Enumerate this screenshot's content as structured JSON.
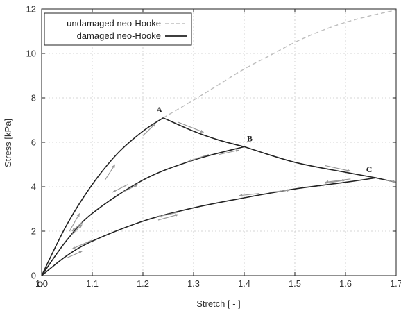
{
  "chart_data": {
    "type": "line",
    "xlabel": "Stretch [ - ]",
    "ylabel": "Stress [kPa]",
    "xlim": [
      1.0,
      1.7
    ],
    "ylim": [
      0,
      12
    ],
    "x_ticks": [
      "1.0",
      "1.1",
      "1.2",
      "1.3",
      "1.4",
      "1.5",
      "1.6",
      "1.7"
    ],
    "y_ticks": [
      "0",
      "2",
      "4",
      "6",
      "8",
      "10",
      "12"
    ],
    "grid": true,
    "legend_position": "top-left",
    "origin_label": "O",
    "series": [
      {
        "name": "undamaged neo-Hooke",
        "style": "dashed",
        "color": "#bdbdbd",
        "x": [
          1.24,
          1.3,
          1.35,
          1.4,
          1.45,
          1.5,
          1.55,
          1.6,
          1.65,
          1.7
        ],
        "y": [
          7.1,
          7.9,
          8.6,
          9.3,
          9.9,
          10.5,
          11.0,
          11.4,
          11.7,
          11.95
        ]
      },
      {
        "name": "damaged neo-Hooke",
        "style": "solid",
        "color": "#222222",
        "segments": [
          {
            "x": [
              1.0,
              1.05,
              1.1,
              1.15,
              1.2,
              1.24
            ],
            "y": [
              0,
              2.3,
              4.1,
              5.5,
              6.5,
              7.1
            ]
          },
          {
            "x": [
              1.24,
              1.3,
              1.35,
              1.4
            ],
            "y": [
              7.1,
              6.5,
              6.1,
              5.8
            ]
          },
          {
            "x": [
              1.0,
              1.05,
              1.1,
              1.2,
              1.3,
              1.4
            ],
            "y": [
              0,
              1.6,
              2.8,
              4.3,
              5.2,
              5.8
            ]
          },
          {
            "x": [
              1.4,
              1.5,
              1.6,
              1.66
            ],
            "y": [
              5.8,
              5.1,
              4.65,
              4.4
            ]
          },
          {
            "x": [
              1.0,
              1.05,
              1.1,
              1.2,
              1.3,
              1.4,
              1.5,
              1.6,
              1.66
            ],
            "y": [
              0,
              0.9,
              1.55,
              2.45,
              3.05,
              3.5,
              3.9,
              4.2,
              4.4
            ]
          },
          {
            "x": [
              1.66,
              1.7
            ],
            "y": [
              4.4,
              4.2
            ]
          }
        ]
      }
    ],
    "annotations": [
      {
        "text": "A",
        "x": 1.24,
        "y": 7.1
      },
      {
        "text": "B",
        "x": 1.4,
        "y": 5.8
      },
      {
        "text": "C",
        "x": 1.66,
        "y": 4.4
      }
    ],
    "arrows": [
      {
        "x1": 1.055,
        "y1": 2.0,
        "x2": 1.075,
        "y2": 2.8
      },
      {
        "x1": 1.125,
        "y1": 4.3,
        "x2": 1.145,
        "y2": 5.0
      },
      {
        "x1": 1.2,
        "y1": 6.3,
        "x2": 1.225,
        "y2": 6.85
      },
      {
        "x1": 1.27,
        "y1": 6.9,
        "x2": 1.32,
        "y2": 6.45
      },
      {
        "x1": 1.56,
        "y1": 4.95,
        "x2": 1.61,
        "y2": 4.7
      },
      {
        "x1": 1.33,
        "y1": 5.45,
        "x2": 1.29,
        "y2": 5.15
      },
      {
        "x1": 1.17,
        "y1": 4.1,
        "x2": 1.14,
        "y2": 3.75
      },
      {
        "x1": 1.08,
        "y1": 2.4,
        "x2": 1.06,
        "y2": 2.0
      },
      {
        "x1": 1.06,
        "y1": 1.85,
        "x2": 1.08,
        "y2": 2.3
      },
      {
        "x1": 1.16,
        "y1": 3.75,
        "x2": 1.19,
        "y2": 4.1
      },
      {
        "x1": 1.35,
        "y1": 5.45,
        "x2": 1.39,
        "y2": 5.65
      },
      {
        "x1": 1.61,
        "y1": 4.35,
        "x2": 1.56,
        "y2": 4.2
      },
      {
        "x1": 1.43,
        "y1": 3.7,
        "x2": 1.39,
        "y2": 3.6
      },
      {
        "x1": 1.27,
        "y1": 2.85,
        "x2": 1.23,
        "y2": 2.65
      },
      {
        "x1": 1.1,
        "y1": 1.6,
        "x2": 1.06,
        "y2": 1.2
      },
      {
        "x1": 1.05,
        "y1": 0.8,
        "x2": 1.08,
        "y2": 1.1
      },
      {
        "x1": 1.23,
        "y1": 2.5,
        "x2": 1.27,
        "y2": 2.75
      },
      {
        "x1": 1.45,
        "y1": 3.75,
        "x2": 1.49,
        "y2": 3.85
      },
      {
        "x1": 1.56,
        "y1": 4.15,
        "x2": 1.6,
        "y2": 4.3
      },
      {
        "x1": 1.68,
        "y1": 4.3,
        "x2": 1.7,
        "y2": 4.2
      }
    ]
  }
}
